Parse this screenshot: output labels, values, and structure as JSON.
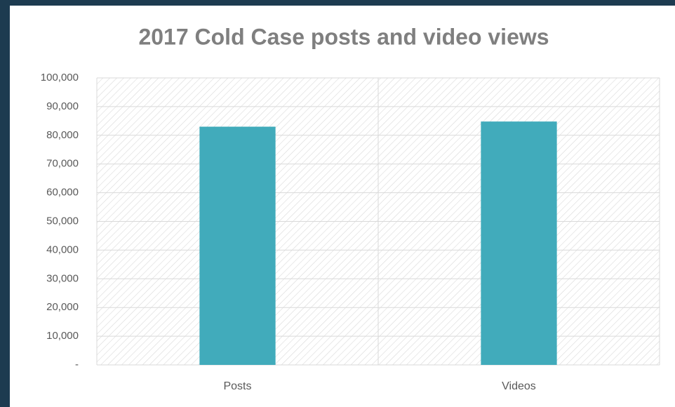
{
  "chart_data": {
    "type": "bar",
    "title": "2017 Cold Case posts and video views",
    "categories": [
      "Posts",
      "Videos"
    ],
    "values": [
      83000,
      84800
    ],
    "color": "#41abbb",
    "ylim": [
      0,
      100000
    ],
    "yticks": [
      {
        "value": 0,
        "label": "-"
      },
      {
        "value": 10000,
        "label": "10,000"
      },
      {
        "value": 20000,
        "label": "20,000"
      },
      {
        "value": 30000,
        "label": "30,000"
      },
      {
        "value": 40000,
        "label": "40,000"
      },
      {
        "value": 50000,
        "label": "50,000"
      },
      {
        "value": 60000,
        "label": "60,000"
      },
      {
        "value": 70000,
        "label": "70,000"
      },
      {
        "value": 80000,
        "label": "80,000"
      },
      {
        "value": 90000,
        "label": "90,000"
      },
      {
        "value": 100000,
        "label": "100,000"
      }
    ],
    "grid": true
  }
}
